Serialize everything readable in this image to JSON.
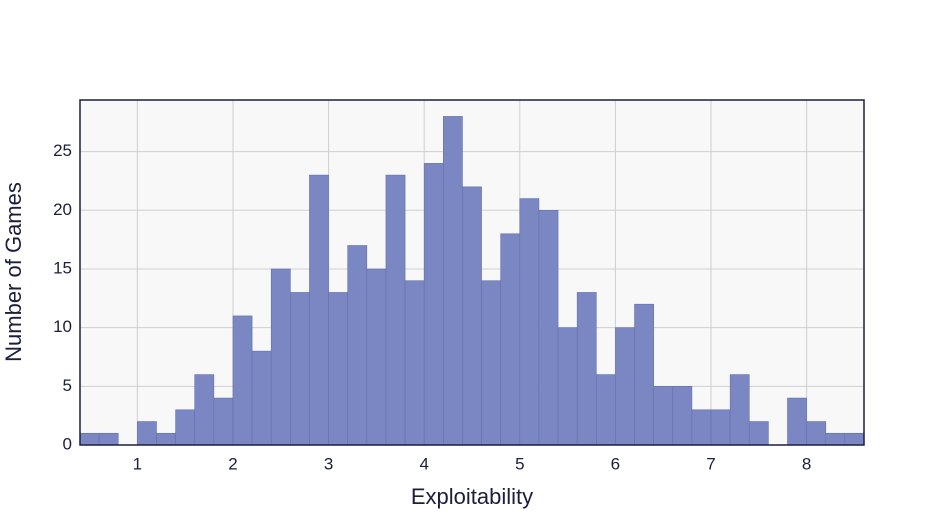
{
  "chart_data": {
    "type": "histogram",
    "x_label": "Exploitability",
    "y_label": "Number of Games",
    "bins": [
      0.4,
      0.6,
      0.8,
      1.0,
      1.2,
      1.4,
      1.6,
      1.8,
      2.0,
      2.2,
      2.4,
      2.6,
      2.8,
      3.0,
      3.2,
      3.4,
      3.6,
      3.8,
      4.0,
      4.2,
      4.4,
      4.6,
      4.8,
      5.0,
      5.2,
      5.4,
      5.6,
      5.8,
      6.0,
      6.2,
      6.4,
      6.6,
      6.8,
      7.0,
      7.2,
      7.4,
      7.6,
      7.8,
      8.0,
      8.2,
      8.4,
      8.6
    ],
    "values": [
      1,
      1,
      0,
      2,
      1,
      3,
      6,
      4,
      11,
      8,
      15,
      13,
      23,
      13,
      17,
      15,
      23,
      14,
      24,
      28,
      22,
      14,
      18,
      21,
      20,
      10,
      13,
      6,
      10,
      12,
      5,
      5,
      3,
      3,
      6,
      2,
      0,
      4,
      2,
      1,
      1
    ],
    "color": "#7b87c2",
    "xlim": [
      0.4,
      8.6
    ],
    "xticks": [
      1,
      2,
      3,
      4,
      5,
      6,
      7,
      8
    ],
    "ylim": [
      0,
      29.4
    ],
    "yticks": [
      0,
      5,
      10,
      15,
      20,
      25
    ],
    "grid": true
  }
}
